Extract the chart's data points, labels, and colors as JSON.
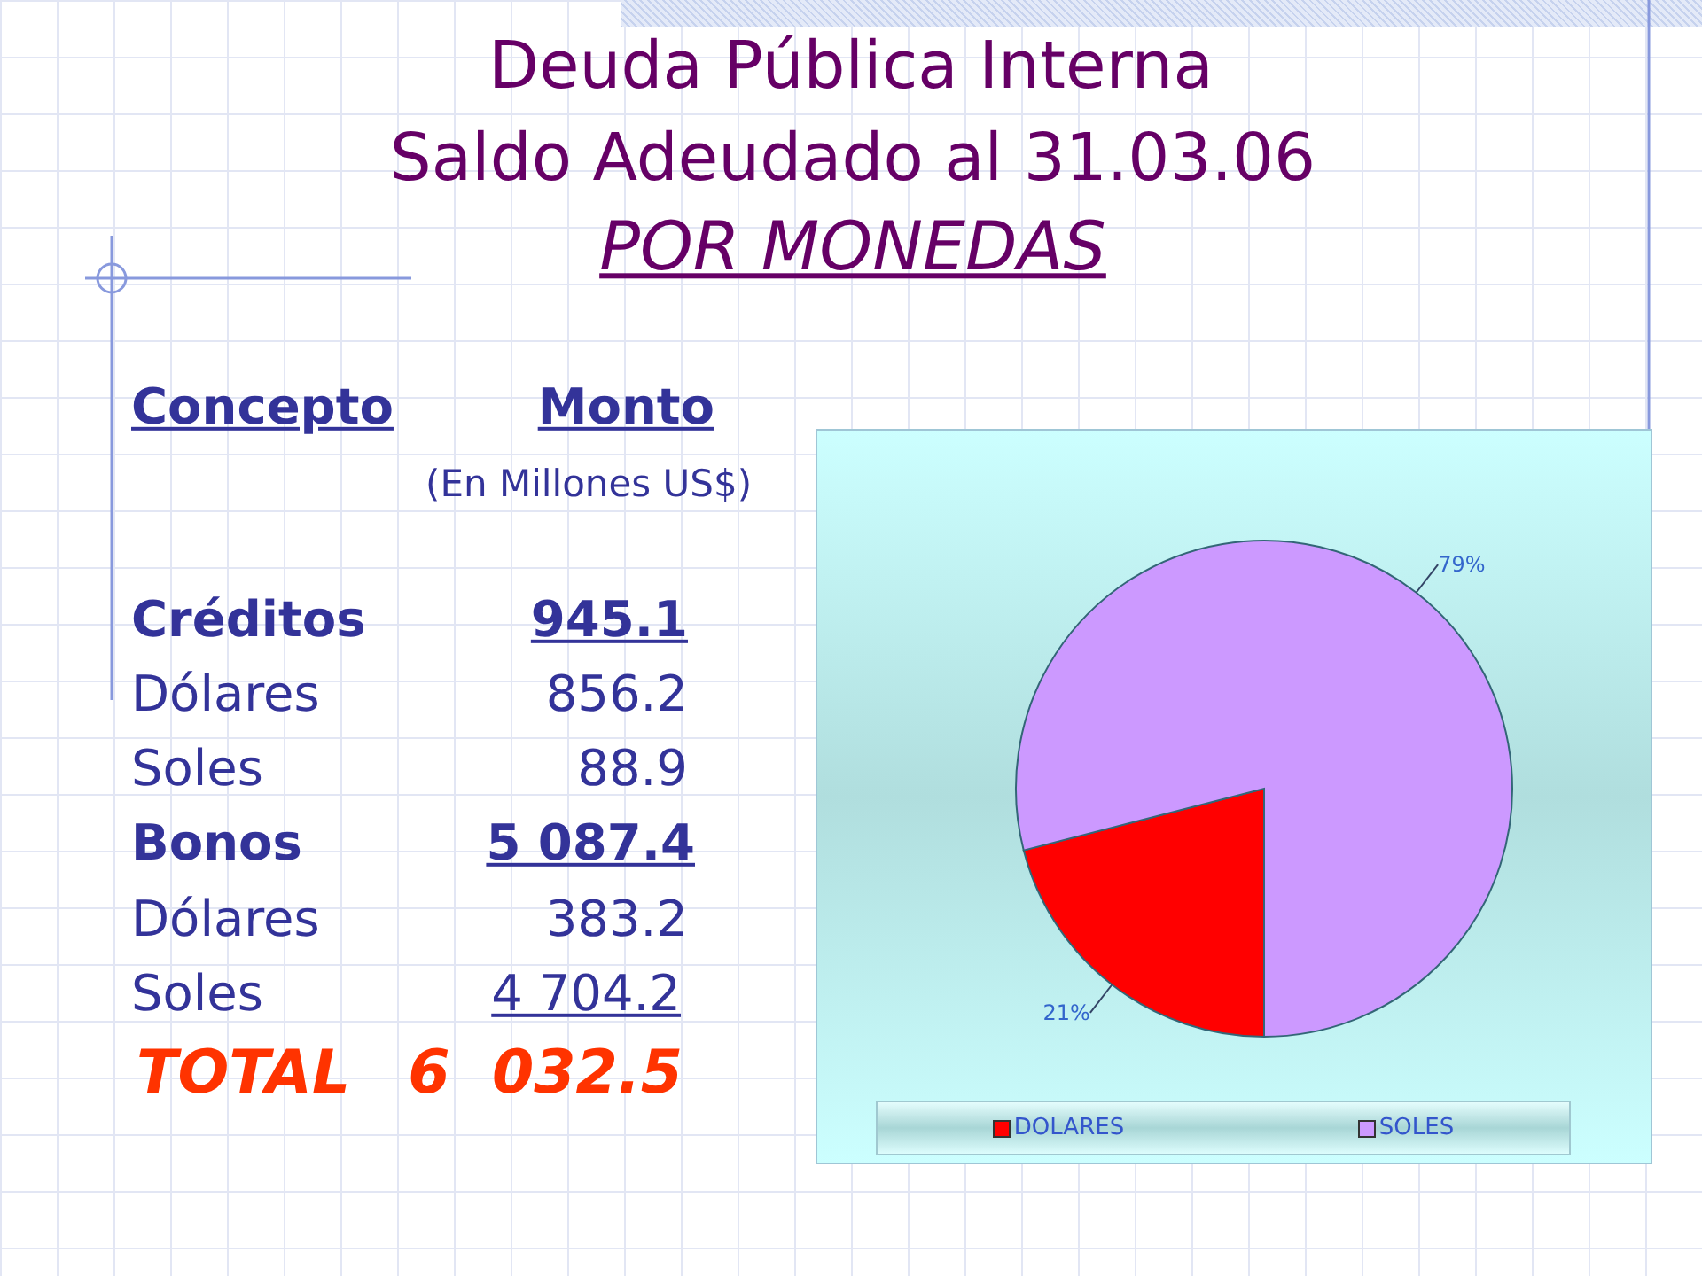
{
  "chart_data": [
    {
      "type": "other",
      "title": "Deuda Pública Interna",
      "subtitle": "Saldo Adeudado al 31.03.06",
      "annotations": [
        "POR MONEDAS",
        "Concepto",
        "Monto",
        "(En Millones US$)",
        "Créditos",
        "945.1",
        "Dólares",
        "856.2",
        "Soles",
        "88.9",
        "Bonos",
        "5 087.4",
        "Dólares",
        "383.2",
        "Soles",
        "4 704.2",
        "TOTAL",
        "6  032.5"
      ]
    },
    {
      "type": "pie",
      "categories": [
        "DOLARES",
        "SOLES"
      ],
      "values": [
        21,
        79
      ],
      "colors": [
        "#ff0000",
        "#cc99ff"
      ],
      "value_labels": [
        "21%",
        "79%"
      ],
      "legend": "bottom"
    }
  ]
}
